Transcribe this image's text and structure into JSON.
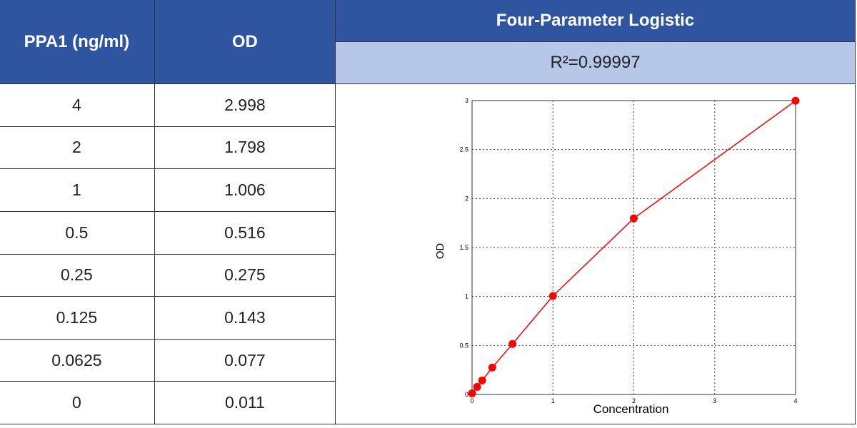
{
  "table": {
    "header": {
      "col1": "PPA1 (ng/ml)",
      "col2": "OD",
      "title": "Four-Parameter Logistic",
      "subtitle": "R²=0.99997"
    },
    "rows": [
      [
        "4",
        "2.998"
      ],
      [
        "2",
        "1.798"
      ],
      [
        "1",
        "1.006"
      ],
      [
        "0.5",
        "0.516"
      ],
      [
        "0.25",
        "0.275"
      ],
      [
        "0.125",
        "0.143"
      ],
      [
        "0.0625",
        "0.077"
      ],
      [
        "0",
        "0.011"
      ]
    ]
  },
  "chart_data": {
    "type": "line",
    "xlabel": "Concentration",
    "ylabel": "OD",
    "color": "#ff0000",
    "x": [
      4,
      2,
      1,
      0.5,
      0.25,
      0.125,
      0.0625,
      0
    ],
    "values": [
      2.998,
      1.798,
      1.006,
      0.516,
      0.275,
      0.143,
      0.077,
      0.011
    ],
    "xlim": [
      0,
      4
    ],
    "ylim": [
      0,
      3
    ],
    "xticks": [
      0,
      1,
      2,
      3,
      4
    ],
    "yticks": [
      0,
      0.5,
      1,
      1.5,
      2,
      2.5,
      3
    ],
    "grid": true
  }
}
